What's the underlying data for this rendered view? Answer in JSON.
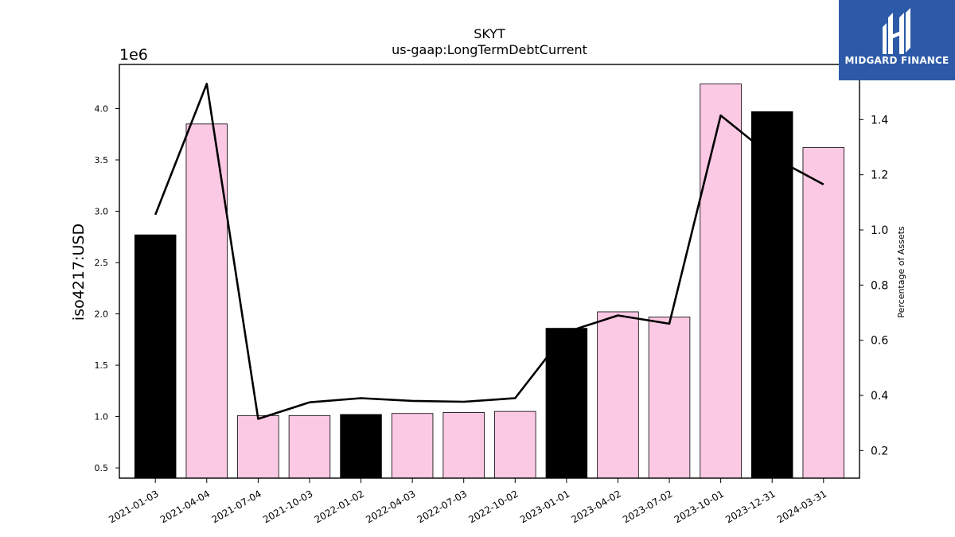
{
  "brand": {
    "name": "MIDGARD FINANCE",
    "bg": "#2c5aa8"
  },
  "chart_data": {
    "type": "bar",
    "title": "SKYT",
    "subtitle": "us-gaap:LongTermDebtCurrent",
    "ylabel": "iso4217:USD",
    "y_offset_label": "1e6",
    "y2label": "Percentage of Assets",
    "categories": [
      "2021-01-03",
      "2021-04-04",
      "2021-07-04",
      "2021-10-03",
      "2022-01-02",
      "2022-04-03",
      "2022-07-03",
      "2022-10-02",
      "2023-01-01",
      "2023-04-02",
      "2023-07-02",
      "2023-10-01",
      "2023-12-31",
      "2024-03-31"
    ],
    "series": [
      {
        "axis": "left",
        "kind": "bar",
        "values": [
          2.77,
          3.85,
          1.01,
          1.01,
          1.02,
          1.03,
          1.04,
          1.05,
          1.86,
          2.02,
          1.97,
          4.24,
          3.97,
          3.62
        ],
        "colors": [
          "#000000",
          "#fcc9e4",
          "#fcc9e4",
          "#fcc9e4",
          "#000000",
          "#fcc9e4",
          "#fcc9e4",
          "#fcc9e4",
          "#000000",
          "#fcc9e4",
          "#fcc9e4",
          "#fcc9e4",
          "#000000",
          "#fcc9e4"
        ]
      },
      {
        "axis": "right",
        "kind": "line",
        "color": "#000000",
        "values": [
          1.055,
          1.53,
          0.315,
          0.375,
          0.39,
          0.38,
          0.377,
          0.39,
          0.63,
          0.69,
          0.66,
          1.415,
          1.265,
          1.165
        ]
      }
    ],
    "ylim": [
      0.4,
      4.43
    ],
    "y2lim": [
      0.1,
      1.6
    ],
    "yticks": [
      "0.5",
      "1.0",
      "1.5",
      "2.0",
      "2.5",
      "3.0",
      "3.5",
      "4.0"
    ],
    "y2ticks": [
      "0.2",
      "0.4",
      "0.6",
      "0.8",
      "1.0",
      "1.2",
      "1.4"
    ],
    "grid": false
  }
}
